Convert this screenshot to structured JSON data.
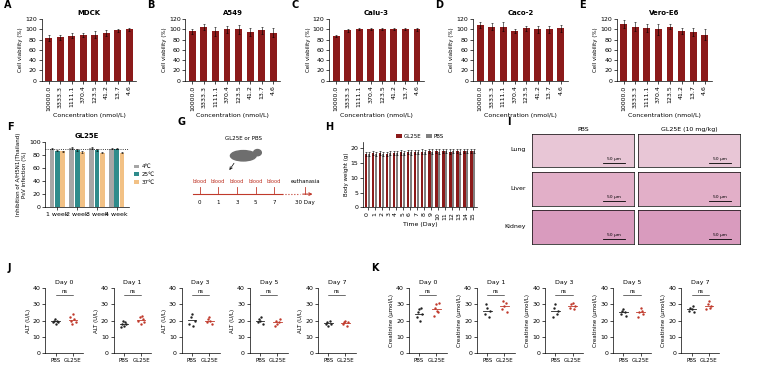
{
  "chart_data": [
    {
      "panel": "A",
      "type": "bar",
      "title": "MDCK",
      "xlabel": "Concentration (nmol/L)",
      "ylabel": "Cell viability (%)",
      "categories": [
        "10000.0",
        "3333.3",
        "1111.1",
        "370.4",
        "123.5",
        "41.2",
        "13.7",
        "4.6"
      ],
      "values": [
        84,
        85,
        88,
        89,
        90,
        93,
        98,
        100
      ],
      "errors": [
        6,
        5,
        5,
        4,
        6,
        5,
        3,
        3
      ],
      "color": "#8B1A1A",
      "ylim": [
        0,
        120
      ],
      "yticks": [
        0,
        20,
        40,
        60,
        80,
        100,
        120
      ]
    },
    {
      "panel": "B",
      "type": "bar",
      "title": "A549",
      "xlabel": "Concentration (nmol/L)",
      "ylabel": "Cell viability (%)",
      "categories": [
        "10000.0",
        "3333.3",
        "1111.1",
        "370.4",
        "123.5",
        "41.2",
        "13.7",
        "4.6"
      ],
      "values": [
        96,
        105,
        96,
        100,
        100,
        95,
        98,
        94
      ],
      "errors": [
        4,
        6,
        8,
        7,
        9,
        7,
        6,
        8
      ],
      "color": "#8B1A1A",
      "ylim": [
        0,
        120
      ],
      "yticks": [
        0,
        20,
        40,
        60,
        80,
        100,
        120
      ]
    },
    {
      "panel": "C",
      "type": "bar",
      "title": "Calu-3",
      "xlabel": "Concentration (nmol/L)",
      "ylabel": "Cell viability (%)",
      "categories": [
        "10000.0",
        "3333.3",
        "1111.1",
        "370.4",
        "123.5",
        "41.2",
        "13.7",
        "4.6"
      ],
      "values": [
        88,
        98,
        100,
        100,
        100,
        100,
        100,
        100
      ],
      "errors": [
        2,
        3,
        2,
        2,
        2,
        2,
        2,
        3
      ],
      "color": "#8B1A1A",
      "ylim": [
        0,
        120
      ],
      "yticks": [
        0,
        20,
        40,
        60,
        80,
        100,
        120
      ]
    },
    {
      "panel": "D",
      "type": "bar",
      "title": "Caco-2",
      "xlabel": "Concentration (nmol/L)",
      "ylabel": "Cell viability (%)",
      "categories": [
        "10000.0",
        "3333.3",
        "1111.1",
        "370.4",
        "123.5",
        "41.2",
        "13.7",
        "4.6"
      ],
      "values": [
        108,
        105,
        105,
        97,
        102,
        100,
        100,
        102
      ],
      "errors": [
        6,
        7,
        9,
        4,
        5,
        6,
        6,
        7
      ],
      "color": "#8B1A1A",
      "ylim": [
        0,
        120
      ],
      "yticks": [
        0,
        20,
        40,
        60,
        80,
        100,
        120
      ]
    },
    {
      "panel": "E",
      "type": "bar",
      "title": "Vero-E6",
      "xlabel": "Concentration (nmol/L)",
      "ylabel": "Cell viability (%)",
      "categories": [
        "10000.0",
        "3333.3",
        "1111.1",
        "370.4",
        "123.5",
        "41.2",
        "13.7",
        "4.6"
      ],
      "values": [
        110,
        105,
        103,
        100,
        105,
        97,
        95,
        90
      ],
      "errors": [
        8,
        9,
        8,
        10,
        5,
        6,
        8,
        10
      ],
      "color": "#8B1A1A",
      "ylim": [
        0,
        120
      ],
      "yticks": [
        0,
        20,
        40,
        60,
        80,
        100,
        120
      ]
    },
    {
      "panel": "F",
      "type": "bar",
      "title": "GL25E",
      "ylabel": "Inhibition of A/H5N1(Thailand)\nPsV infection (%)",
      "categories": [
        "1 week",
        "2 week",
        "3 week",
        "4 week"
      ],
      "series": [
        {
          "name": "4℃",
          "color": "#A6A6A6",
          "values": [
            90,
            91,
            91,
            90
          ],
          "errors": [
            1,
            1,
            1,
            1
          ]
        },
        {
          "name": "25℃",
          "color": "#2E8B8B",
          "values": [
            87,
            88,
            88,
            90
          ],
          "errors": [
            1,
            1,
            1,
            1
          ]
        },
        {
          "name": "37℃",
          "color": "#F2C185",
          "values": [
            86,
            85,
            84,
            84
          ],
          "errors": [
            1,
            1,
            1,
            1
          ]
        }
      ],
      "reference_line": 90,
      "legend": "right",
      "ylim": [
        0,
        100
      ],
      "yticks": [
        0,
        20,
        40,
        60,
        80,
        100
      ]
    },
    {
      "panel": "G",
      "type": "diagram",
      "treatment": "GL25E or PBS",
      "sample_label": "blood",
      "timepoints": [
        "0",
        "1",
        "3",
        "5",
        "7"
      ],
      "end_label": "euthanasia",
      "end_timepoint": "30 Day"
    },
    {
      "panel": "H",
      "type": "bar",
      "xlabel": "Time (Day)",
      "ylabel": "Body weight (g)",
      "categories": [
        "0",
        "1",
        "2",
        "3",
        "4",
        "5",
        "6",
        "7",
        "8",
        "9",
        "10",
        "11",
        "12",
        "13",
        "14",
        "15"
      ],
      "series": [
        {
          "name": "GL25E",
          "color": "#8B1A1A",
          "values": [
            18.0,
            18.2,
            18.3,
            18.1,
            18.4,
            18.5,
            18.6,
            18.7,
            18.8,
            18.9,
            18.9,
            19.0,
            18.8,
            18.9,
            19.0,
            19.1
          ],
          "errors": [
            0.7,
            0.7,
            0.7,
            0.7,
            0.7,
            0.7,
            0.7,
            0.7,
            0.7,
            0.7,
            0.7,
            0.7,
            0.7,
            0.7,
            0.7,
            0.7
          ]
        },
        {
          "name": "PBS",
          "color": "#808080",
          "values": [
            17.9,
            18.0,
            18.1,
            18.2,
            18.2,
            18.4,
            18.5,
            18.6,
            18.6,
            18.8,
            18.8,
            18.9,
            18.9,
            18.8,
            19.0,
            19.0
          ],
          "errors": [
            0.7,
            0.7,
            0.7,
            0.7,
            0.7,
            0.7,
            0.7,
            0.7,
            0.7,
            0.7,
            0.7,
            0.7,
            0.7,
            0.7,
            0.7,
            0.7
          ]
        }
      ],
      "legend": "top",
      "ylim": [
        0,
        22
      ],
      "yticks": [
        0,
        5,
        10,
        15,
        20
      ]
    },
    {
      "panel": "I",
      "type": "image_grid",
      "columns": [
        "PBS",
        "GL25E (10 mg/kg)"
      ],
      "rows": [
        "Lung",
        "Liver",
        "Kidney"
      ],
      "scale_bar": "50 μm"
    },
    {
      "panel": "J",
      "type": "dot",
      "ylabel": "ALT (U/L)",
      "categories": [
        "PBS",
        "GL25E"
      ],
      "colors": [
        "#222222",
        "#C0392B"
      ],
      "annotation": "ns",
      "ylim": [
        0,
        40
      ],
      "yticks": [
        0,
        10,
        20,
        30,
        40
      ],
      "groups": [
        {
          "title": "Day 0",
          "values": [
            [
              19,
              20,
              21,
              18,
              20,
              19
            ],
            [
              22,
              20,
              18,
              24,
              21,
              19
            ]
          ]
        },
        {
          "title": "Day 1",
          "values": [
            [
              16,
              18,
              20,
              17,
              19,
              18
            ],
            [
              20,
              22,
              18,
              23,
              21,
              19
            ]
          ]
        },
        {
          "title": "Day 3",
          "values": [
            [
              18,
              22,
              24,
              17,
              20
            ],
            [
              19,
              21,
              22,
              20,
              18
            ]
          ]
        },
        {
          "title": "Day 5",
          "values": [
            [
              19,
              21,
              20,
              22,
              18
            ],
            [
              17,
              20,
              18,
              19,
              21
            ]
          ]
        },
        {
          "title": "Day 7",
          "values": [
            [
              18,
              19,
              17,
              20,
              18
            ],
            [
              18,
              19,
              20,
              17,
              19
            ]
          ]
        }
      ]
    },
    {
      "panel": "K",
      "type": "dot",
      "ylabel": "Creatinine (μmol/L)",
      "categories": [
        "PBS",
        "GL25E"
      ],
      "colors": [
        "#222222",
        "#C0392B"
      ],
      "annotation": "ns",
      "ylim": [
        0,
        40
      ],
      "yticks": [
        0,
        10,
        20,
        30,
        40
      ],
      "groups": [
        {
          "title": "Day 0",
          "values": [
            [
              22,
              25,
              27,
              20,
              28,
              24
            ],
            [
              23,
              28,
              30,
              26,
              25,
              31
            ]
          ]
        },
        {
          "title": "Day 1",
          "values": [
            [
              24,
              30,
              28,
              22,
              26
            ],
            [
              27,
              32,
              29,
              31,
              25
            ]
          ]
        },
        {
          "title": "Day 3",
          "values": [
            [
              22,
              28,
              30,
              24,
              26
            ],
            [
              28,
              30,
              31,
              27,
              29
            ]
          ]
        },
        {
          "title": "Day 5",
          "values": [
            [
              24,
              26,
              27,
              25,
              23
            ],
            [
              22,
              25,
              28,
              26,
              24
            ]
          ]
        },
        {
          "title": "Day 7",
          "values": [
            [
              26,
              28,
              27,
              29,
              25
            ],
            [
              27,
              30,
              32,
              28,
              29
            ]
          ]
        }
      ]
    }
  ]
}
